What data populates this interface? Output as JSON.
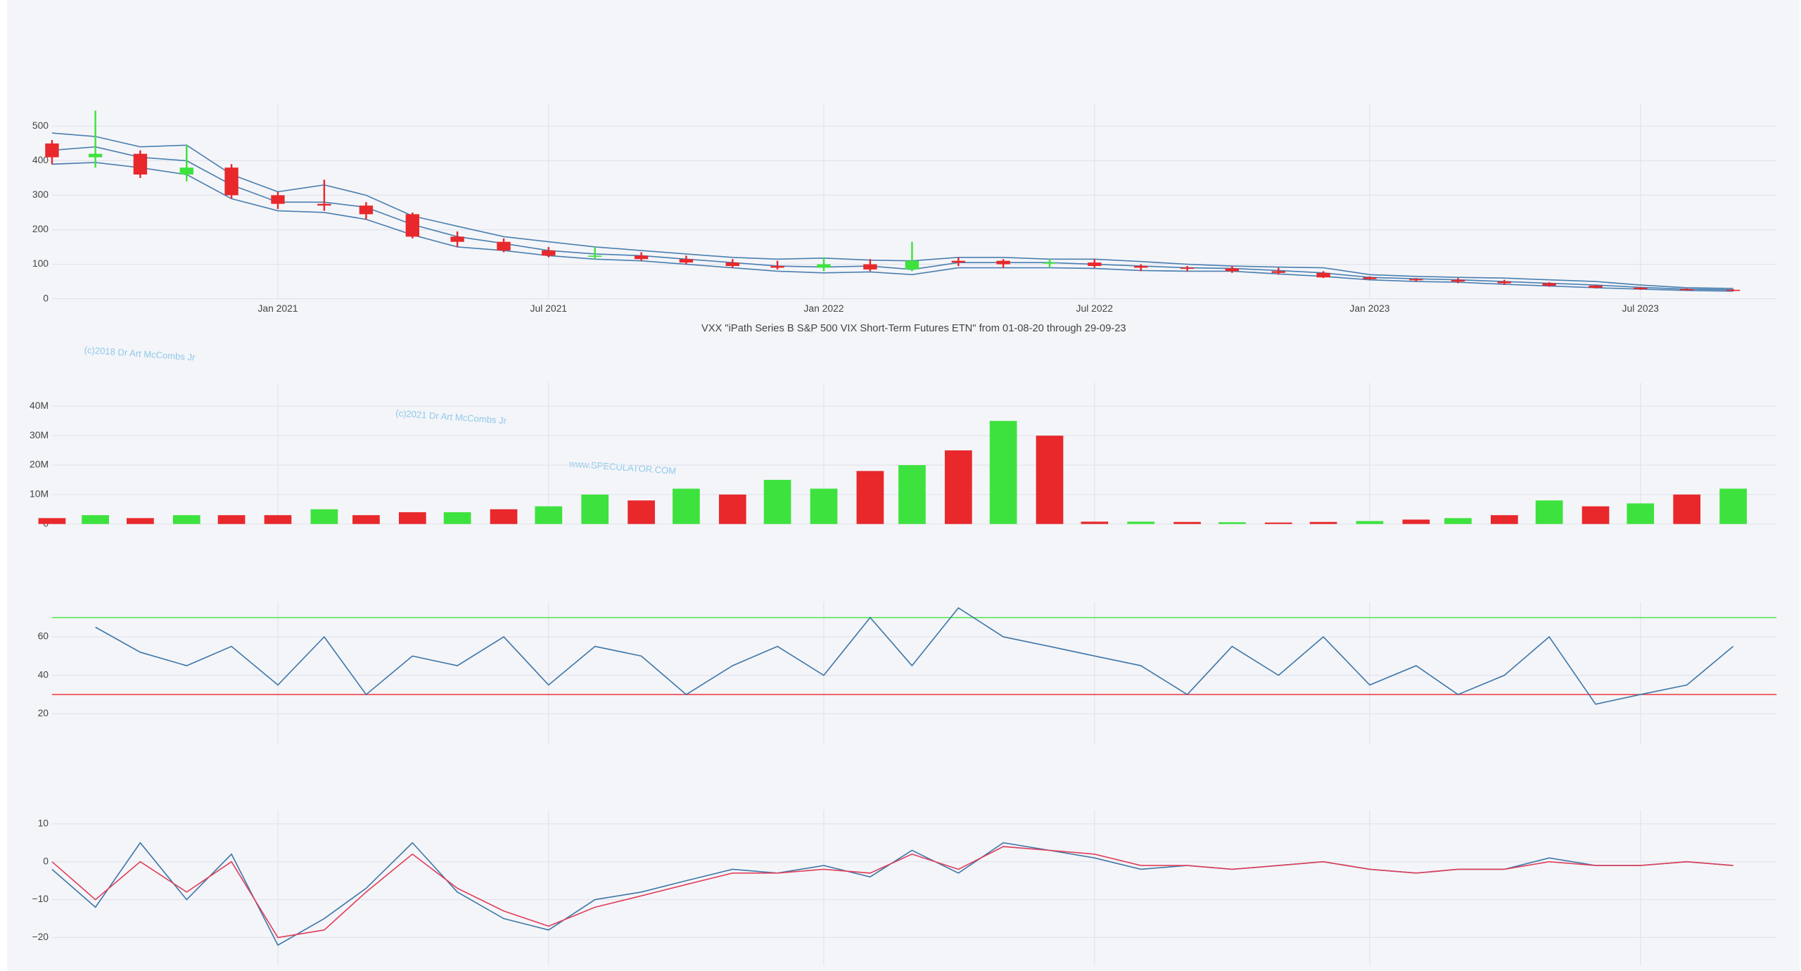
{
  "annotations": [
    "(c)2018 Dr Art McCombs Jr",
    "(c)2021 Dr Art McCombs Jr",
    "www.SPECULATOR.COM"
  ],
  "chart_data": [
    {
      "type": "candlestick",
      "title": "VXX \"iPath Series B S&P 500 VIX Short-Term Futures ETN\" from 01-08-20 through 29-09-23",
      "x": [
        "2020-08-03",
        "2020-09-01",
        "2020-10-01",
        "2020-11-01",
        "2020-12-01",
        "2021-01-01",
        "2021-02-01",
        "2021-03-01",
        "2021-04-01",
        "2021-05-01",
        "2021-06-01",
        "2021-07-01",
        "2021-08-01",
        "2021-09-01",
        "2021-10-01",
        "2021-11-01",
        "2021-12-01",
        "2022-01-01",
        "2022-02-01",
        "2022-03-01",
        "2022-04-01",
        "2022-05-01",
        "2022-06-01",
        "2022-07-01",
        "2022-08-01",
        "2022-09-01",
        "2022-10-01",
        "2022-11-01",
        "2022-12-01",
        "2023-01-01",
        "2023-02-01",
        "2023-03-01",
        "2023-04-01",
        "2023-05-01",
        "2023-06-01",
        "2023-07-01",
        "2023-08-01",
        "2023-09-01"
      ],
      "open": [
        450,
        410,
        420,
        360,
        380,
        300,
        275,
        270,
        245,
        180,
        165,
        140,
        125,
        125,
        115,
        105,
        95,
        90,
        100,
        85,
        110,
        110,
        105,
        105,
        95,
        90,
        88,
        80,
        75,
        62,
        57,
        55,
        50,
        45,
        38,
        32,
        28,
        26
      ],
      "high": [
        460,
        545,
        430,
        445,
        390,
        310,
        345,
        280,
        250,
        195,
        175,
        150,
        150,
        135,
        125,
        115,
        110,
        120,
        115,
        165,
        120,
        115,
        115,
        115,
        100,
        95,
        95,
        90,
        80,
        65,
        60,
        60,
        55,
        48,
        40,
        34,
        30,
        28
      ],
      "low": [
        390,
        380,
        350,
        340,
        290,
        260,
        255,
        230,
        175,
        150,
        135,
        120,
        115,
        110,
        100,
        90,
        85,
        80,
        80,
        80,
        95,
        90,
        90,
        90,
        80,
        80,
        75,
        70,
        60,
        55,
        50,
        45,
        40,
        35,
        30,
        26,
        24,
        22
      ],
      "close": [
        410,
        420,
        360,
        380,
        300,
        275,
        270,
        245,
        180,
        165,
        140,
        125,
        125,
        115,
        105,
        95,
        90,
        100,
        85,
        110,
        105,
        100,
        105,
        95,
        90,
        88,
        80,
        75,
        62,
        57,
        55,
        50,
        45,
        38,
        32,
        28,
        26,
        23
      ],
      "upper": [
        480,
        470,
        440,
        445,
        360,
        310,
        330,
        300,
        240,
        210,
        180,
        165,
        150,
        140,
        130,
        120,
        115,
        118,
        112,
        110,
        120,
        120,
        115,
        115,
        108,
        100,
        95,
        92,
        90,
        70,
        65,
        62,
        60,
        55,
        50,
        40,
        32,
        30
      ],
      "middle": [
        430,
        440,
        410,
        400,
        330,
        280,
        280,
        265,
        215,
        180,
        160,
        140,
        130,
        125,
        115,
        105,
        95,
        92,
        95,
        85,
        105,
        105,
        105,
        100,
        95,
        90,
        88,
        82,
        75,
        62,
        58,
        55,
        50,
        45,
        40,
        33,
        28,
        26
      ],
      "lower": [
        390,
        395,
        380,
        360,
        290,
        255,
        250,
        230,
        185,
        150,
        140,
        125,
        115,
        110,
        100,
        90,
        80,
        75,
        78,
        70,
        90,
        90,
        90,
        88,
        82,
        80,
        80,
        72,
        65,
        55,
        50,
        48,
        42,
        37,
        32,
        28,
        24,
        22
      ],
      "up_color": "#3ee23e",
      "down_color": "#e8282b",
      "band_color": "#4a7fb0",
      "xlim": [
        "2020-08-03",
        "2023-09-30"
      ],
      "xticks": [
        {
          "value": "2021-01-01",
          "label": "Jan 2021"
        },
        {
          "value": "2021-07-01",
          "label": "Jul 2021"
        },
        {
          "value": "2022-01-01",
          "label": "Jan 2022"
        },
        {
          "value": "2022-07-01",
          "label": "Jul 2022"
        },
        {
          "value": "2023-01-01",
          "label": "Jan 2023"
        },
        {
          "value": "2023-07-01",
          "label": "Jul 2023"
        }
      ],
      "ylim": [
        0,
        566
      ],
      "yticks": [
        0,
        100,
        200,
        300,
        400,
        500
      ],
      "grid": true
    },
    {
      "type": "bar",
      "x": [
        "2020-08-03",
        "2020-09-01",
        "2020-10-01",
        "2020-11-01",
        "2020-12-01",
        "2021-01-01",
        "2021-02-01",
        "2021-03-01",
        "2021-04-01",
        "2021-05-01",
        "2021-06-01",
        "2021-07-01",
        "2021-08-01",
        "2021-09-01",
        "2021-10-01",
        "2021-11-01",
        "2021-12-01",
        "2022-01-01",
        "2022-02-01",
        "2022-03-01",
        "2022-04-01",
        "2022-05-01",
        "2022-06-01",
        "2022-07-01",
        "2022-08-01",
        "2022-09-01",
        "2022-10-01",
        "2022-11-01",
        "2022-12-01",
        "2023-01-01",
        "2023-02-01",
        "2023-03-01",
        "2023-04-01",
        "2023-05-01",
        "2023-06-01",
        "2023-07-01",
        "2023-08-01",
        "2023-09-01"
      ],
      "values": [
        2000000,
        3000000,
        2000000,
        3000000,
        3000000,
        3000000,
        5000000,
        3000000,
        4000000,
        4000000,
        5000000,
        6000000,
        10000000,
        8000000,
        12000000,
        10000000,
        15000000,
        12000000,
        18000000,
        20000000,
        25000000,
        35000000,
        30000000,
        800000,
        800000,
        700000,
        600000,
        500000,
        700000,
        1000000,
        1500000,
        2000000,
        3000000,
        8000000,
        6000000,
        7000000,
        10000000,
        12000000
      ],
      "colors": [
        "#e8282b",
        "#3ee23e",
        "#e8282b",
        "#3ee23e",
        "#e8282b",
        "#e8282b",
        "#3ee23e",
        "#e8282b",
        "#e8282b",
        "#3ee23e",
        "#e8282b",
        "#3ee23e",
        "#3ee23e",
        "#e8282b",
        "#3ee23e",
        "#e8282b",
        "#3ee23e",
        "#3ee23e",
        "#e8282b",
        "#3ee23e",
        "#e8282b",
        "#3ee23e",
        "#e8282b",
        "#e8282b",
        "#3ee23e",
        "#e8282b",
        "#3ee23e",
        "#e8282b",
        "#e8282b",
        "#3ee23e",
        "#e8282b",
        "#3ee23e",
        "#e8282b",
        "#3ee23e",
        "#e8282b",
        "#3ee23e",
        "#e8282b",
        "#3ee23e"
      ],
      "xlim": [
        "2020-08-03",
        "2023-09-30"
      ],
      "ylim": [
        0,
        48000000
      ],
      "yticks": [
        0,
        {
          "value": 10000000,
          "label": "10M"
        },
        {
          "value": 20000000,
          "label": "20M"
        },
        {
          "value": 30000000,
          "label": "30M"
        },
        {
          "value": 40000000,
          "label": "40M"
        }
      ],
      "grid": true
    },
    {
      "type": "line",
      "x": [
        "2020-08-03",
        "2020-09-01",
        "2020-10-01",
        "2020-11-01",
        "2020-12-01",
        "2021-01-01",
        "2021-02-01",
        "2021-03-01",
        "2021-04-01",
        "2021-05-01",
        "2021-06-01",
        "2021-07-01",
        "2021-08-01",
        "2021-09-01",
        "2021-10-01",
        "2021-11-01",
        "2021-12-01",
        "2022-01-01",
        "2022-02-01",
        "2022-03-01",
        "2022-04-01",
        "2022-05-01",
        "2022-06-01",
        "2022-07-01",
        "2022-08-01",
        "2022-09-01",
        "2022-10-01",
        "2022-11-01",
        "2022-12-01",
        "2023-01-01",
        "2023-02-01",
        "2023-03-01",
        "2023-04-01",
        "2023-05-01",
        "2023-06-01",
        "2023-07-01",
        "2023-08-01",
        "2023-09-01"
      ],
      "series": [
        {
          "color": "#3f77a8",
          "values": [
            null,
            65,
            52,
            45,
            55,
            35,
            60,
            30,
            50,
            45,
            60,
            35,
            55,
            50,
            30,
            45,
            55,
            40,
            70,
            45,
            75,
            60,
            55,
            50,
            45,
            30,
            55,
            40,
            60,
            35,
            45,
            30,
            40,
            60,
            25,
            30,
            35,
            55
          ]
        }
      ],
      "hlines": [
        {
          "value": 70,
          "color": "#59e659"
        },
        {
          "value": 30,
          "color": "#f0444a"
        }
      ],
      "xlim": [
        "2020-08-03",
        "2023-09-30"
      ],
      "ylim": [
        4,
        78
      ],
      "yticks": [
        20,
        40,
        60
      ],
      "grid": true
    },
    {
      "type": "line",
      "x": [
        "2020-08-03",
        "2020-09-01",
        "2020-10-01",
        "2020-11-01",
        "2020-12-01",
        "2021-01-01",
        "2021-02-01",
        "2021-03-01",
        "2021-04-01",
        "2021-05-01",
        "2021-06-01",
        "2021-07-01",
        "2021-08-01",
        "2021-09-01",
        "2021-10-01",
        "2021-11-01",
        "2021-12-01",
        "2022-01-01",
        "2022-02-01",
        "2022-03-01",
        "2022-04-01",
        "2022-05-01",
        "2022-06-01",
        "2022-07-01",
        "2022-08-01",
        "2022-09-01",
        "2022-10-01",
        "2022-11-01",
        "2022-12-01",
        "2023-01-01",
        "2023-02-01",
        "2023-03-01",
        "2023-04-01",
        "2023-05-01",
        "2023-06-01",
        "2023-07-01",
        "2023-08-01",
        "2023-09-01"
      ],
      "series": [
        {
          "color": "#3f77a8",
          "values": [
            -2,
            -12,
            5,
            -10,
            2,
            -22,
            -15,
            -7,
            5,
            -8,
            -15,
            -18,
            -10,
            -8,
            -5,
            -2,
            -3,
            -1,
            -4,
            3,
            -3,
            5,
            3,
            1,
            -2,
            -1,
            -2,
            -1,
            0,
            -2,
            -3,
            -2,
            -2,
            1,
            -1,
            -1,
            0,
            -1
          ]
        },
        {
          "color": "#e0405a",
          "values": [
            0,
            -10,
            0,
            -8,
            0,
            -20,
            -18,
            -8,
            2,
            -7,
            -13,
            -17,
            -12,
            -9,
            -6,
            -3,
            -3,
            -2,
            -3,
            2,
            -2,
            4,
            3,
            2,
            -1,
            -1,
            -2,
            -1,
            0,
            -2,
            -3,
            -2,
            -2,
            0,
            -1,
            -1,
            0,
            -1
          ]
        }
      ],
      "xlim": [
        "2020-08-03",
        "2023-09-30"
      ],
      "ylim": [
        -27.3,
        13.6
      ],
      "yticks": [
        {
          "value": -20,
          "label": "−20"
        },
        {
          "value": -10,
          "label": "−10"
        },
        0,
        10
      ],
      "grid": true
    }
  ]
}
